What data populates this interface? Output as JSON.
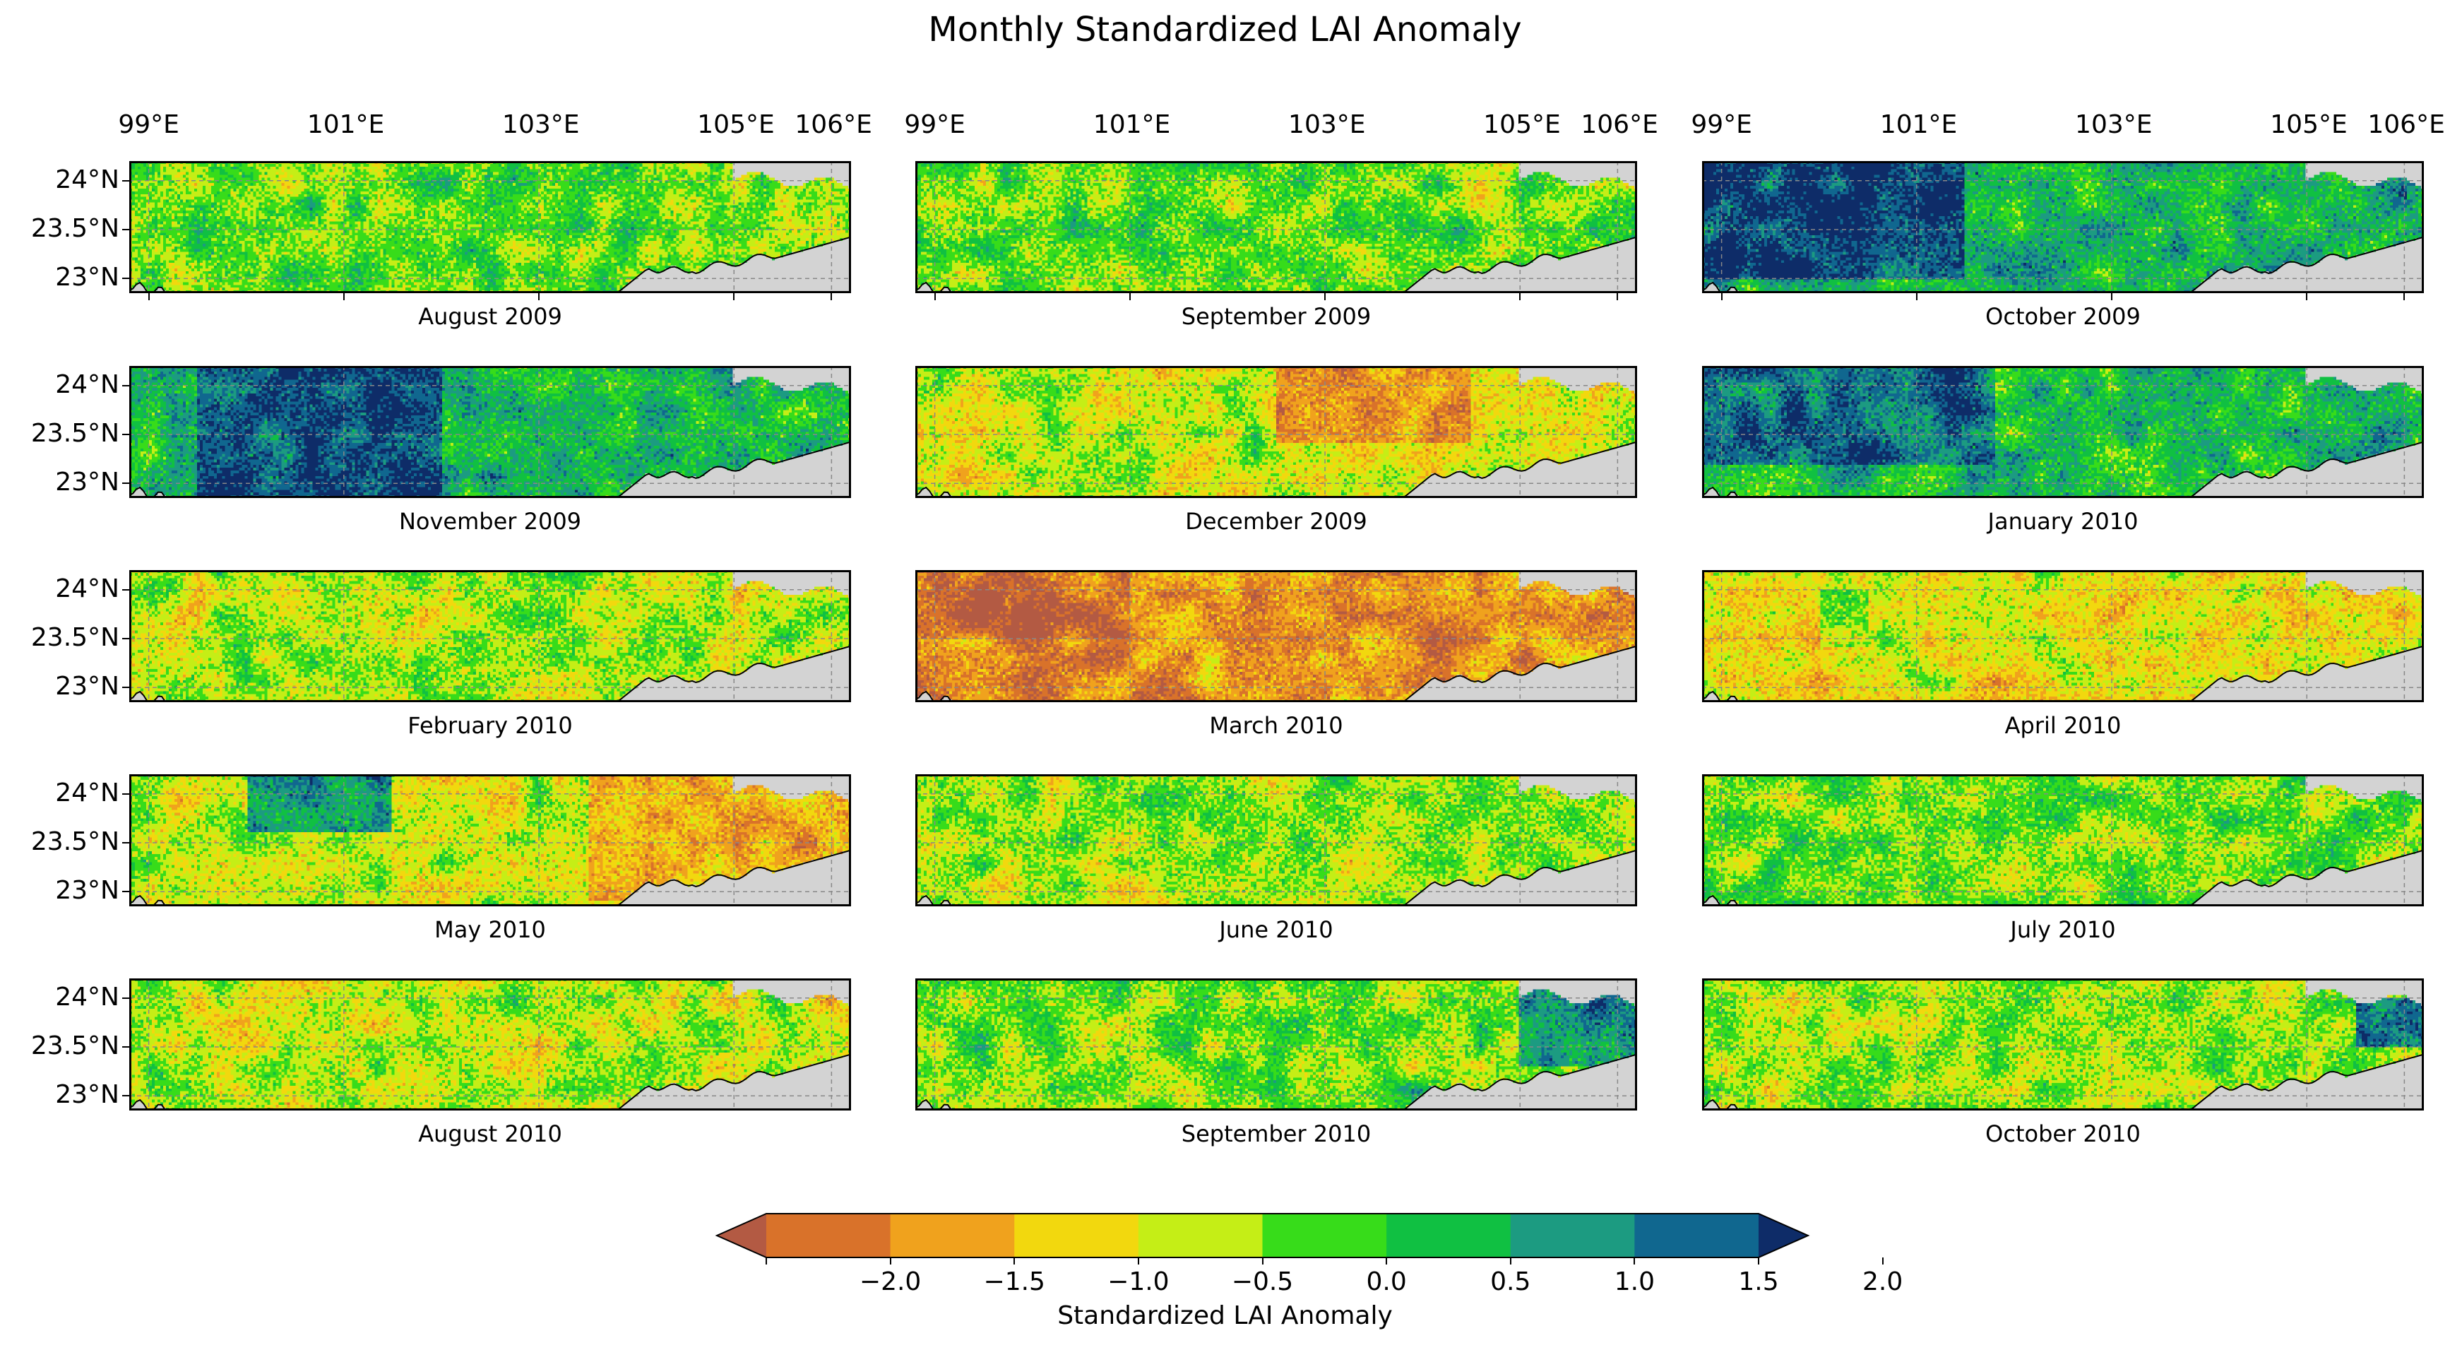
{
  "figure_title": "Monthly Standardized LAI Anomaly",
  "chart_data": {
    "type": "heatmap",
    "title": "Monthly Standardized LAI Anomaly",
    "grid": true,
    "layout": "5 rows x 3 columns of map panels",
    "x_ticks": [
      "99°E",
      "101°E",
      "103°E",
      "105°E",
      "106°E"
    ],
    "x_tick_values": [
      99,
      101,
      103,
      105,
      106
    ],
    "y_ticks": [
      "24°N",
      "23.5°N",
      "23°N"
    ],
    "y_tick_values": [
      24,
      23.5,
      23
    ],
    "x_range": [
      98.8,
      106.2
    ],
    "y_range": [
      22.85,
      24.2
    ],
    "panels": [
      {
        "label": "August 2009",
        "mean_anomaly": 0.1,
        "notes": "mixed, fine-grained"
      },
      {
        "label": "September 2009",
        "mean_anomaly": 0.2,
        "notes": "mixed, greener in west"
      },
      {
        "label": "October 2009",
        "mean_anomaly": 0.9,
        "notes": "strong positive in west"
      },
      {
        "label": "November 2009",
        "mean_anomaly": 0.9,
        "notes": "strong positive west-center"
      },
      {
        "label": "December 2009",
        "mean_anomaly": -0.4,
        "notes": "negative center-east"
      },
      {
        "label": "January 2010",
        "mean_anomaly": 0.8,
        "notes": "positive west"
      },
      {
        "label": "February 2010",
        "mean_anomaly": -0.2,
        "notes": "mixed, slightly negative"
      },
      {
        "label": "March 2010",
        "mean_anomaly": -1.4,
        "notes": "widespread negative"
      },
      {
        "label": "April 2010",
        "mean_anomaly": -0.6,
        "notes": "negative, positive spots west"
      },
      {
        "label": "May 2010",
        "mean_anomaly": -0.3,
        "notes": "positive northwest, negative east"
      },
      {
        "label": "June 2010",
        "mean_anomaly": 0.0,
        "notes": "mixed"
      },
      {
        "label": "July 2010",
        "mean_anomaly": 0.1,
        "notes": "mixed"
      },
      {
        "label": "August 2010",
        "mean_anomaly": -0.3,
        "notes": "mixed, slightly negative"
      },
      {
        "label": "September 2010",
        "mean_anomaly": 0.1,
        "notes": "mixed, positive east"
      },
      {
        "label": "October 2010",
        "mean_anomaly": -0.1,
        "notes": "mixed, positive far east"
      }
    ],
    "colorbar": {
      "label": "Standardized LAI Anomaly",
      "tick_labels": [
        "−2.0",
        "−1.5",
        "−1.0",
        "−0.5",
        "0.0",
        "0.5",
        "1.0",
        "1.5",
        "2.0"
      ],
      "boundaries": [
        -2.0,
        -1.5,
        -1.0,
        -0.5,
        0.0,
        0.5,
        1.0,
        1.5,
        2.0
      ],
      "extend": "both",
      "colors": [
        "#b35a43",
        "#d9722a",
        "#f0a21d",
        "#f2d80e",
        "#c5ee16",
        "#37dc1a",
        "#10c042",
        "#1c9b81",
        "#10678f",
        "#0e2c68"
      ]
    },
    "background_color": "#d3d3d3",
    "border_color": "#000000"
  }
}
